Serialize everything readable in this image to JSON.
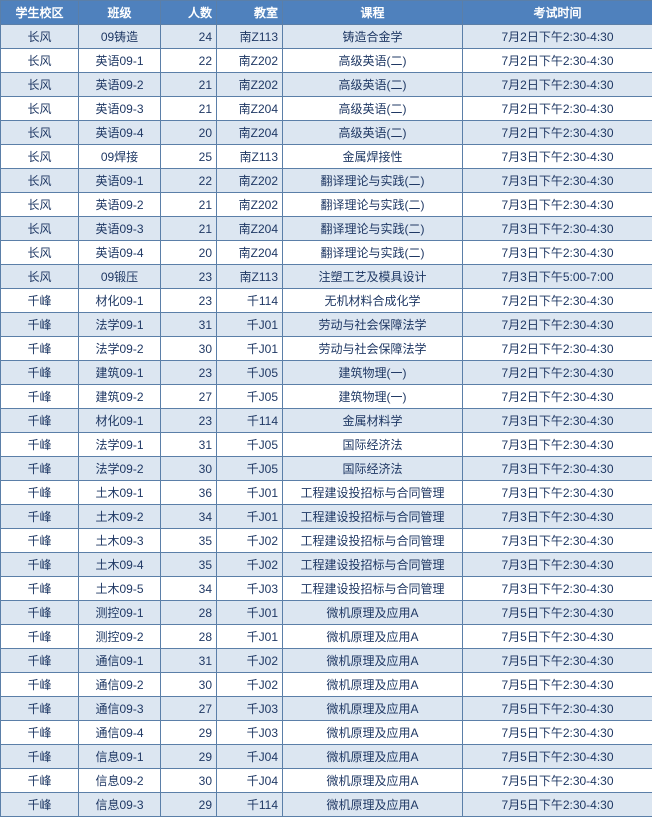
{
  "header": {
    "campus": "学生校区",
    "class": "班级",
    "count": "人数",
    "room": "教室",
    "course": "课程",
    "time": "考试时间"
  },
  "rows": [
    {
      "campus": "长风",
      "class": "09铸造",
      "count": "24",
      "room": "南Z113",
      "course": "铸造合金学",
      "time": "7月2日下午2:30-4:30"
    },
    {
      "campus": "长风",
      "class": "英语09-1",
      "count": "22",
      "room": "南Z202",
      "course": "高级英语(二)",
      "time": "7月2日下午2:30-4:30"
    },
    {
      "campus": "长风",
      "class": "英语09-2",
      "count": "21",
      "room": "南Z202",
      "course": "高级英语(二)",
      "time": "7月2日下午2:30-4:30"
    },
    {
      "campus": "长风",
      "class": "英语09-3",
      "count": "21",
      "room": "南Z204",
      "course": "高级英语(二)",
      "time": "7月2日下午2:30-4:30"
    },
    {
      "campus": "长风",
      "class": "英语09-4",
      "count": "20",
      "room": "南Z204",
      "course": "高级英语(二)",
      "time": "7月2日下午2:30-4:30"
    },
    {
      "campus": "长风",
      "class": "09焊接",
      "count": "25",
      "room": "南Z113",
      "course": "金属焊接性",
      "time": "7月3日下午2:30-4:30"
    },
    {
      "campus": "长风",
      "class": "英语09-1",
      "count": "22",
      "room": "南Z202",
      "course": "翻译理论与实践(二)",
      "time": "7月3日下午2:30-4:30"
    },
    {
      "campus": "长风",
      "class": "英语09-2",
      "count": "21",
      "room": "南Z202",
      "course": "翻译理论与实践(二)",
      "time": "7月3日下午2:30-4:30"
    },
    {
      "campus": "长风",
      "class": "英语09-3",
      "count": "21",
      "room": "南Z204",
      "course": "翻译理论与实践(二)",
      "time": "7月3日下午2:30-4:30"
    },
    {
      "campus": "长风",
      "class": "英语09-4",
      "count": "20",
      "room": "南Z204",
      "course": "翻译理论与实践(二)",
      "time": "7月3日下午2:30-4:30"
    },
    {
      "campus": "长风",
      "class": "09锻压",
      "count": "23",
      "room": "南Z113",
      "course": "注塑工艺及模具设计",
      "time": "7月3日下午5:00-7:00"
    },
    {
      "campus": "千峰",
      "class": "材化09-1",
      "count": "23",
      "room": "千114",
      "course": "无机材料合成化学",
      "time": "7月2日下午2:30-4:30"
    },
    {
      "campus": "千峰",
      "class": "法学09-1",
      "count": "31",
      "room": "千J01",
      "course": "劳动与社会保障法学",
      "time": "7月2日下午2:30-4:30"
    },
    {
      "campus": "千峰",
      "class": "法学09-2",
      "count": "30",
      "room": "千J01",
      "course": "劳动与社会保障法学",
      "time": "7月2日下午2:30-4:30"
    },
    {
      "campus": "千峰",
      "class": "建筑09-1",
      "count": "23",
      "room": "千J05",
      "course": "建筑物理(一)",
      "time": "7月2日下午2:30-4:30"
    },
    {
      "campus": "千峰",
      "class": "建筑09-2",
      "count": "27",
      "room": "千J05",
      "course": "建筑物理(一)",
      "time": "7月2日下午2:30-4:30"
    },
    {
      "campus": "千峰",
      "class": "材化09-1",
      "count": "23",
      "room": "千114",
      "course": "金属材料学",
      "time": "7月3日下午2:30-4:30"
    },
    {
      "campus": "千峰",
      "class": "法学09-1",
      "count": "31",
      "room": "千J05",
      "course": "国际经济法",
      "time": "7月3日下午2:30-4:30"
    },
    {
      "campus": "千峰",
      "class": "法学09-2",
      "count": "30",
      "room": "千J05",
      "course": "国际经济法",
      "time": "7月3日下午2:30-4:30"
    },
    {
      "campus": "千峰",
      "class": "土木09-1",
      "count": "36",
      "room": "千J01",
      "course": "工程建设投招标与合同管理",
      "time": "7月3日下午2:30-4:30"
    },
    {
      "campus": "千峰",
      "class": "土木09-2",
      "count": "34",
      "room": "千J01",
      "course": "工程建设投招标与合同管理",
      "time": "7月3日下午2:30-4:30"
    },
    {
      "campus": "千峰",
      "class": "土木09-3",
      "count": "35",
      "room": "千J02",
      "course": "工程建设投招标与合同管理",
      "time": "7月3日下午2:30-4:30"
    },
    {
      "campus": "千峰",
      "class": "土木09-4",
      "count": "35",
      "room": "千J02",
      "course": "工程建设投招标与合同管理",
      "time": "7月3日下午2:30-4:30"
    },
    {
      "campus": "千峰",
      "class": "土木09-5",
      "count": "34",
      "room": "千J03",
      "course": "工程建设投招标与合同管理",
      "time": "7月3日下午2:30-4:30"
    },
    {
      "campus": "千峰",
      "class": "测控09-1",
      "count": "28",
      "room": "千J01",
      "course": "微机原理及应用A",
      "time": "7月5日下午2:30-4:30"
    },
    {
      "campus": "千峰",
      "class": "测控09-2",
      "count": "28",
      "room": "千J01",
      "course": "微机原理及应用A",
      "time": "7月5日下午2:30-4:30"
    },
    {
      "campus": "千峰",
      "class": "通信09-1",
      "count": "31",
      "room": "千J02",
      "course": "微机原理及应用A",
      "time": "7月5日下午2:30-4:30"
    },
    {
      "campus": "千峰",
      "class": "通信09-2",
      "count": "30",
      "room": "千J02",
      "course": "微机原理及应用A",
      "time": "7月5日下午2:30-4:30"
    },
    {
      "campus": "千峰",
      "class": "通信09-3",
      "count": "27",
      "room": "千J03",
      "course": "微机原理及应用A",
      "time": "7月5日下午2:30-4:30"
    },
    {
      "campus": "千峰",
      "class": "通信09-4",
      "count": "29",
      "room": "千J03",
      "course": "微机原理及应用A",
      "time": "7月5日下午2:30-4:30"
    },
    {
      "campus": "千峰",
      "class": "信息09-1",
      "count": "29",
      "room": "千J04",
      "course": "微机原理及应用A",
      "time": "7月5日下午2:30-4:30"
    },
    {
      "campus": "千峰",
      "class": "信息09-2",
      "count": "30",
      "room": "千J04",
      "course": "微机原理及应用A",
      "time": "7月5日下午2:30-4:30"
    },
    {
      "campus": "千峰",
      "class": "信息09-3",
      "count": "29",
      "room": "千114",
      "course": "微机原理及应用A",
      "time": "7月5日下午2:30-4:30"
    }
  ]
}
